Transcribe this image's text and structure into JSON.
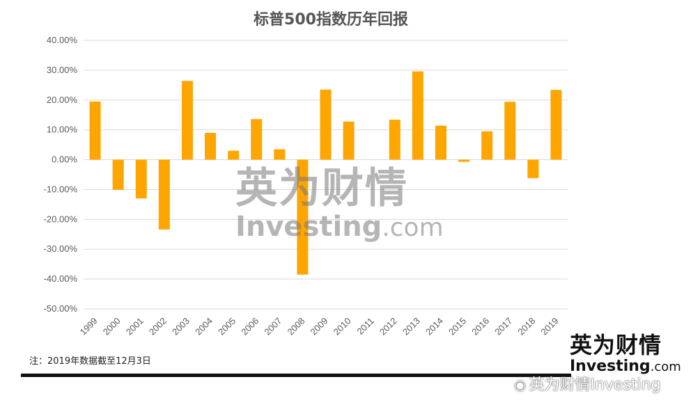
{
  "chart_data": {
    "type": "bar",
    "title": "标普500指数历年回报",
    "categories": [
      "1999",
      "2000",
      "2001",
      "2002",
      "2003",
      "2004",
      "2005",
      "2006",
      "2007",
      "2008",
      "2009",
      "2010",
      "2011",
      "2012",
      "2013",
      "2014",
      "2015",
      "2016",
      "2017",
      "2018",
      "2019"
    ],
    "values": [
      19.5,
      -10.1,
      -13.0,
      -23.4,
      26.4,
      9.0,
      3.0,
      13.6,
      3.5,
      -38.5,
      23.5,
      12.8,
      0.0,
      13.4,
      29.6,
      11.4,
      -0.7,
      9.5,
      19.4,
      -6.2,
      23.4
    ],
    "ylim": [
      -50,
      40
    ],
    "yticks": [
      "40.00%",
      "30.00%",
      "20.00%",
      "10.00%",
      "0.00%",
      "-10.00%",
      "-20.00%",
      "-30.00%",
      "-40.00%",
      "-50.00%"
    ],
    "ytick_values": [
      40,
      30,
      20,
      10,
      0,
      -10,
      -20,
      -30,
      -40,
      -50
    ],
    "bar_color": "#FFA500",
    "grid": true,
    "xlabel": "",
    "ylabel": ""
  },
  "note": "注：2019年数据截至12月3日",
  "logo": {
    "cn": "英为财情",
    "en_main": "Investing",
    "en_suffix": ".com"
  },
  "watermark": {
    "cn": "英为财情",
    "en_main": "Investing",
    "en_suffix": ".com"
  },
  "weibo_handle": "英为财情Investing",
  "colors": {
    "bar": "#FFA500",
    "grid": "#D9D9D9",
    "text": "#595959"
  }
}
